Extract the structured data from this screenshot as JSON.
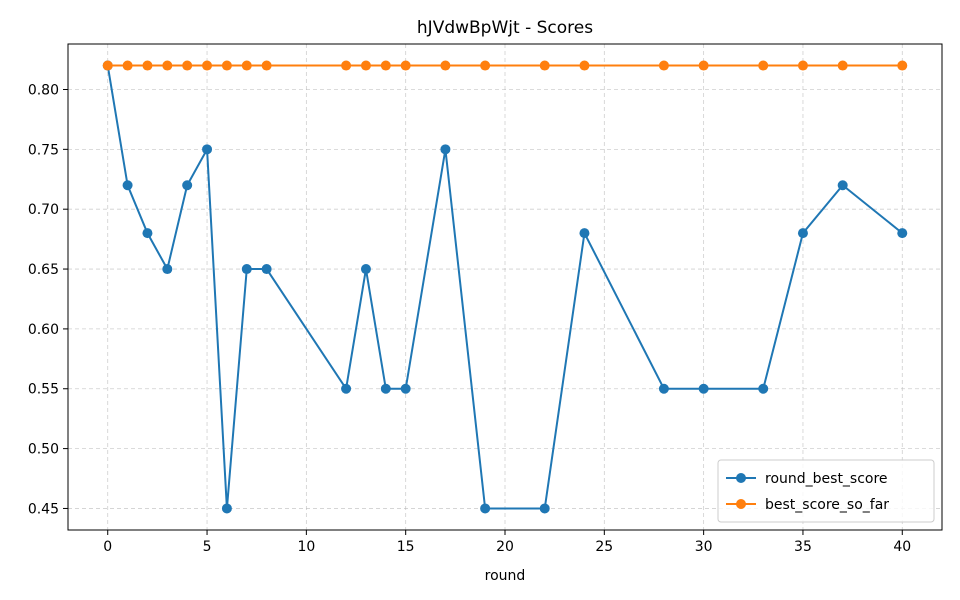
{
  "chart_data": {
    "type": "line",
    "title": "hJVdwBpWjt - Scores",
    "xlabel": "round",
    "ylabel": "",
    "xlim": [
      -2,
      42
    ],
    "ylim": [
      0.432,
      0.838
    ],
    "xticks": [
      0,
      5,
      10,
      15,
      20,
      25,
      30,
      35,
      40
    ],
    "yticks": [
      0.45,
      0.5,
      0.55,
      0.6,
      0.65,
      0.7,
      0.75,
      0.8
    ],
    "ytick_labels": [
      "0.45",
      "0.50",
      "0.55",
      "0.60",
      "0.65",
      "0.70",
      "0.75",
      "0.80"
    ],
    "grid": true,
    "legend_position": "lower-right",
    "series": [
      {
        "name": "round_best_score",
        "color": "#1f77b4",
        "x": [
          0,
          1,
          2,
          3,
          4,
          5,
          6,
          7,
          8,
          12,
          13,
          14,
          15,
          17,
          19,
          22,
          24,
          28,
          30,
          33,
          35,
          37,
          40
        ],
        "y": [
          0.82,
          0.72,
          0.68,
          0.65,
          0.72,
          0.75,
          0.45,
          0.65,
          0.65,
          0.55,
          0.65,
          0.55,
          0.55,
          0.75,
          0.45,
          0.45,
          0.68,
          0.55,
          0.55,
          0.55,
          0.68,
          0.72,
          0.68
        ]
      },
      {
        "name": "best_score_so_far",
        "color": "#ff7f0e",
        "x": [
          0,
          1,
          2,
          3,
          4,
          5,
          6,
          7,
          8,
          12,
          13,
          14,
          15,
          17,
          19,
          22,
          24,
          28,
          30,
          33,
          35,
          37,
          40
        ],
        "y": [
          0.82,
          0.82,
          0.82,
          0.82,
          0.82,
          0.82,
          0.82,
          0.82,
          0.82,
          0.82,
          0.82,
          0.82,
          0.82,
          0.82,
          0.82,
          0.82,
          0.82,
          0.82,
          0.82,
          0.82,
          0.82,
          0.82,
          0.82
        ]
      }
    ]
  }
}
